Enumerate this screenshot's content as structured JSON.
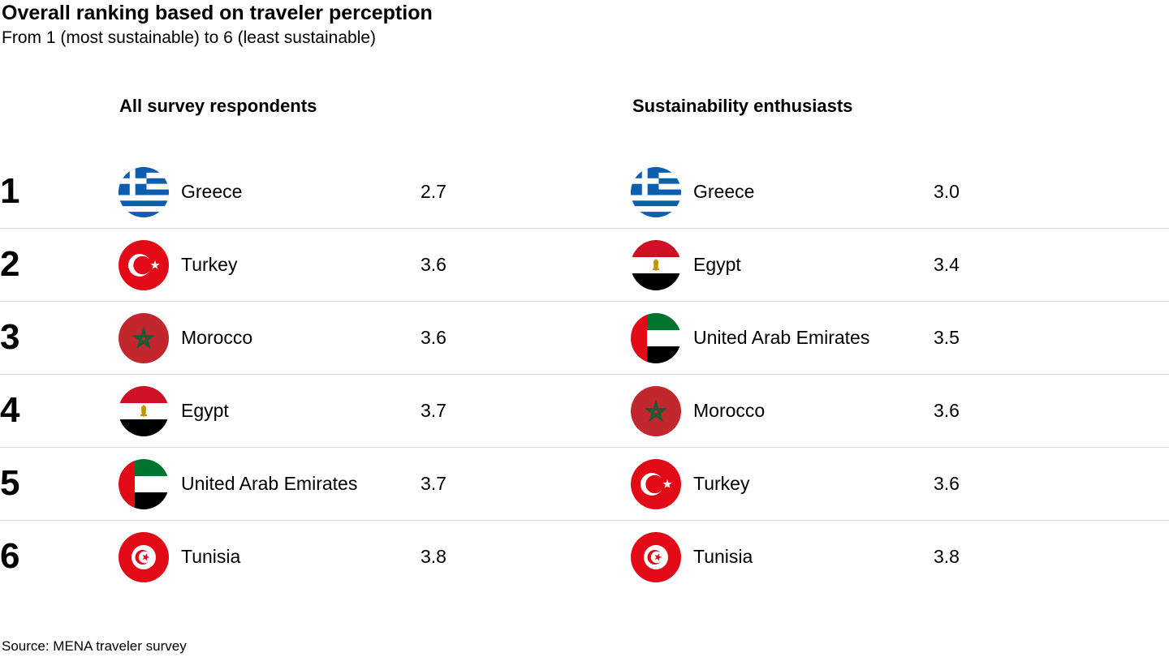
{
  "chart_data": {
    "type": "table",
    "title": "Overall ranking based on traveler perception",
    "subtitle": "From 1 (most sustainable) to 6 (least sustainable)",
    "columns": [
      {
        "name": "All survey respondents",
        "rows": [
          {
            "rank": "1",
            "country": "Greece",
            "value": "2.7",
            "flag": "greece-flag"
          },
          {
            "rank": "2",
            "country": "Turkey",
            "value": "3.6",
            "flag": "turkey-flag"
          },
          {
            "rank": "3",
            "country": "Morocco",
            "value": "3.6",
            "flag": "morocco-flag"
          },
          {
            "rank": "4",
            "country": "Egypt",
            "value": "3.7",
            "flag": "egypt-flag"
          },
          {
            "rank": "5",
            "country": "United Arab Emirates",
            "value": "3.7",
            "flag": "uae-flag"
          },
          {
            "rank": "6",
            "country": "Tunisia",
            "value": "3.8",
            "flag": "tunisia-flag"
          }
        ]
      },
      {
        "name": "Sustainability enthusiasts",
        "rows": [
          {
            "rank": "1",
            "country": "Greece",
            "value": "3.0",
            "flag": "greece-flag"
          },
          {
            "rank": "2",
            "country": "Egypt",
            "value": "3.4",
            "flag": "egypt-flag"
          },
          {
            "rank": "3",
            "country": "United Arab Emirates",
            "value": "3.5",
            "flag": "uae-flag"
          },
          {
            "rank": "4",
            "country": "Morocco",
            "value": "3.6",
            "flag": "morocco-flag"
          },
          {
            "rank": "5",
            "country": "Turkey",
            "value": "3.6",
            "flag": "turkey-flag"
          },
          {
            "rank": "6",
            "country": "Tunisia",
            "value": "3.8",
            "flag": "tunisia-flag"
          }
        ]
      }
    ],
    "source": "Source: MENA traveler survey"
  },
  "colors": {
    "greece_blue": "#0d5eaf",
    "red": "#e30a17",
    "morocco_red": "#c1272d",
    "morocco_green": "#006233",
    "egypt_red": "#ce1126",
    "egypt_gold": "#c09300",
    "uae_green": "#00732f",
    "divider": "#d9d9d9"
  }
}
